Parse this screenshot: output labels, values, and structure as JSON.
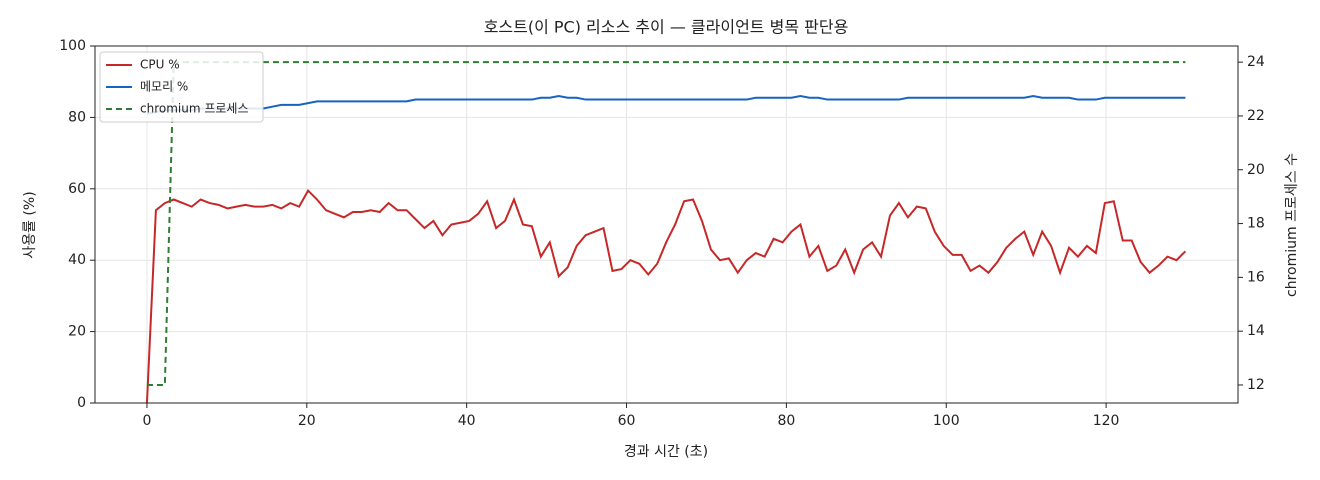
{
  "chart_data": {
    "type": "line",
    "title": "호스트(이 PC) 리소스 추이 — 클라이언트 병목 판단용",
    "x_label": "경과 시간 (초)",
    "y_label": "사용률 (%)",
    "y2_label": "chromium 프로세스 수",
    "xlim": [
      -6.5,
      136.5
    ],
    "xticks": [
      0,
      20,
      40,
      60,
      80,
      100,
      120
    ],
    "ylim": [
      0,
      100
    ],
    "yticks": [
      0,
      20,
      40,
      60,
      80,
      100
    ],
    "y2lim": [
      11.33,
      24.6
    ],
    "y2ticks": [
      12,
      14,
      16,
      18,
      20,
      22,
      24
    ],
    "grid": true,
    "legend": "upper-left",
    "x": [
      0,
      1.12,
      2.24,
      3.36,
      4.48,
      5.6,
      6.72,
      7.84,
      8.96,
      10.08,
      11.2,
      12.32,
      13.44,
      14.56,
      15.68,
      16.8,
      17.92,
      19.04,
      20.16,
      21.28,
      22.4,
      23.52,
      24.64,
      25.76,
      26.88,
      28,
      29.12,
      30.24,
      31.36,
      32.48,
      33.6,
      34.72,
      35.84,
      36.96,
      38.08,
      39.2,
      40.32,
      41.44,
      42.56,
      43.68,
      44.8,
      45.92,
      47.04,
      48.16,
      49.28,
      50.4,
      51.52,
      52.64,
      53.76,
      54.88,
      56,
      57.12,
      58.24,
      59.36,
      60.48,
      61.6,
      62.72,
      63.84,
      64.96,
      66.08,
      67.2,
      68.32,
      69.44,
      70.56,
      71.68,
      72.8,
      73.92,
      75.04,
      76.16,
      77.28,
      78.4,
      79.52,
      80.64,
      81.76,
      82.88,
      84,
      85.12,
      86.24,
      87.36,
      88.48,
      89.6,
      90.72,
      91.84,
      92.96,
      94.08,
      95.2,
      96.32,
      97.44,
      98.56,
      99.68,
      100.8,
      101.92,
      103.04,
      104.16,
      105.28,
      106.4,
      107.52,
      108.64,
      109.76,
      110.88,
      112,
      113.12,
      114.24,
      115.36,
      116.48,
      117.6,
      118.72,
      119.84,
      120.96,
      122.08,
      123.2,
      124.32,
      125.44,
      126.56,
      127.68,
      128.8,
      129.92
    ],
    "series": [
      {
        "name": "CPU %",
        "color": "#c62828",
        "dash": false,
        "values": [
          0,
          54,
          56,
          57,
          56,
          55,
          57,
          56,
          55.5,
          54.5,
          55,
          55.5,
          55,
          55,
          55.5,
          54.5,
          56,
          55,
          59.5,
          57,
          54,
          53,
          52,
          53.5,
          53.5,
          54,
          53.5,
          56,
          54,
          54,
          51.5,
          49,
          51,
          47,
          50,
          50.5,
          51,
          53,
          56.5,
          49,
          51,
          57,
          50,
          49.5,
          41,
          45,
          35.5,
          38,
          44,
          47,
          48,
          49,
          37,
          37.5,
          40,
          39,
          36,
          39,
          45,
          50,
          56.5,
          57,
          51,
          43,
          40,
          40.5,
          36.5,
          40,
          42,
          41,
          46,
          45,
          48,
          50,
          41,
          44,
          37,
          38.5,
          43,
          36.5,
          43,
          45,
          41,
          52.5,
          56,
          52,
          55,
          54.5,
          48,
          44,
          41.5,
          41.5,
          37,
          38.5,
          36.5,
          39.5,
          43.5,
          46,
          48,
          41.5,
          48,
          44,
          36.5,
          43.5,
          41,
          44,
          42,
          56,
          56.5,
          45.5,
          45.5,
          39.5,
          36.5,
          38.5,
          41,
          40,
          42.5
        ]
      },
      {
        "name": "메모리 %",
        "color": "#1565c0",
        "dash": false,
        "values": [
          81,
          81.5,
          82,
          82,
          82,
          82,
          82.5,
          82.5,
          82.5,
          82.5,
          82.5,
          82.5,
          82.5,
          82.5,
          83,
          83.5,
          83.5,
          83.5,
          84,
          84.5,
          84.5,
          84.5,
          84.5,
          84.5,
          84.5,
          84.5,
          84.5,
          84.5,
          84.5,
          84.5,
          85,
          85,
          85,
          85,
          85,
          85,
          85,
          85,
          85,
          85,
          85,
          85,
          85,
          85,
          85.5,
          85.5,
          86,
          85.5,
          85.5,
          85,
          85,
          85,
          85,
          85,
          85,
          85,
          85,
          85,
          85,
          85,
          85,
          85,
          85,
          85,
          85,
          85,
          85,
          85,
          85.5,
          85.5,
          85.5,
          85.5,
          85.5,
          86,
          85.5,
          85.5,
          85,
          85,
          85,
          85,
          85,
          85,
          85,
          85,
          85,
          85.5,
          85.5,
          85.5,
          85.5,
          85.5,
          85.5,
          85.5,
          85.5,
          85.5,
          85.5,
          85.5,
          85.5,
          85.5,
          85.5,
          86,
          85.5,
          85.5,
          85.5,
          85.5,
          85,
          85,
          85,
          85.5,
          85.5,
          85.5,
          85.5,
          85.5,
          85.5,
          85.5,
          85.5,
          85.5,
          85.5
        ]
      },
      {
        "name": "chromium 프로세스",
        "color": "#2e7d32",
        "dash": true,
        "axis": "y2",
        "values": [
          12,
          12,
          12,
          24,
          24,
          24,
          24,
          24,
          24,
          24,
          24,
          24,
          24,
          24,
          24,
          24,
          24,
          24,
          24,
          24,
          24,
          24,
          24,
          24,
          24,
          24,
          24,
          24,
          24,
          24,
          24,
          24,
          24,
          24,
          24,
          24,
          24,
          24,
          24,
          24,
          24,
          24,
          24,
          24,
          24,
          24,
          24,
          24,
          24,
          24,
          24,
          24,
          24,
          24,
          24,
          24,
          24,
          24,
          24,
          24,
          24,
          24,
          24,
          24,
          24,
          24,
          24,
          24,
          24,
          24,
          24,
          24,
          24,
          24,
          24,
          24,
          24,
          24,
          24,
          24,
          24,
          24,
          24,
          24,
          24,
          24,
          24,
          24,
          24,
          24,
          24,
          24,
          24,
          24,
          24,
          24,
          24,
          24,
          24,
          24,
          24,
          24,
          24,
          24,
          24,
          24,
          24,
          24,
          24,
          24,
          24,
          24,
          24,
          24,
          24,
          24,
          24
        ]
      }
    ]
  }
}
